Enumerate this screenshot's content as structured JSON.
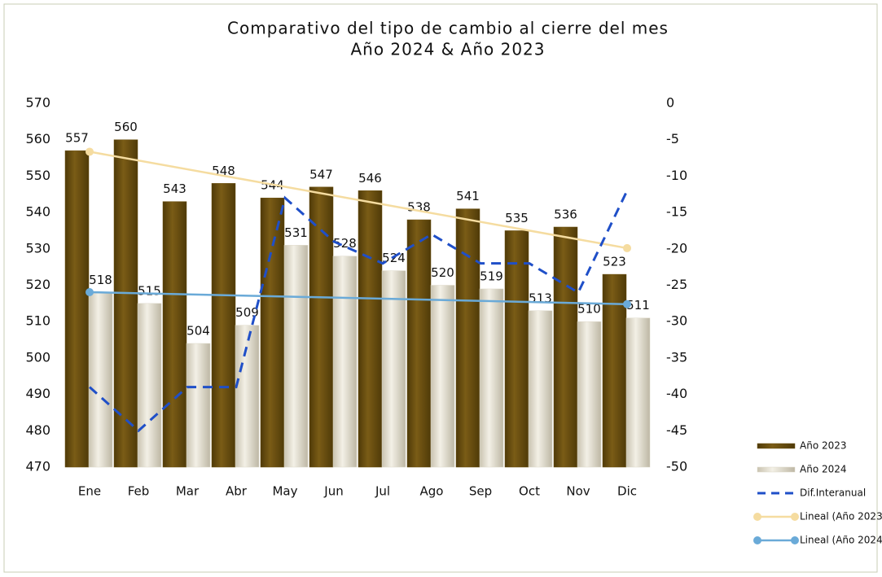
{
  "chart_data": {
    "type": "bar",
    "title": "Comparativo del tipo de cambio al cierre del mes",
    "subtitle": "Año 2024 & Año 2023",
    "categories": [
      "Ene",
      "Feb",
      "Mar",
      "Abr",
      "May",
      "Jun",
      "Jul",
      "Ago",
      "Sep",
      "Oct",
      "Nov",
      "Dic"
    ],
    "series": [
      {
        "name": "Año 2023",
        "color": "#6b5010",
        "values": [
          557,
          560,
          543,
          548,
          544,
          547,
          546,
          538,
          541,
          535,
          536,
          523
        ]
      },
      {
        "name": "Año 2024",
        "color": "#ddd8c8",
        "values": [
          518,
          515,
          504,
          509,
          531,
          528,
          524,
          520,
          519,
          513,
          510,
          511
        ]
      },
      {
        "name": "Dif.Interanual",
        "color": "#1f4fc8",
        "axis": "y2",
        "values": [
          -39,
          -45,
          -39,
          -39,
          -13,
          -19,
          -22,
          -18,
          -22,
          -22,
          -26,
          -12
        ]
      }
    ],
    "trendlines": [
      {
        "name": "Lineal (Año 2023",
        "color": "#f5dca0",
        "values": [
          556.7,
          530.2
        ]
      },
      {
        "name": "Lineal (Año 2024",
        "color": "#6aaad8",
        "values": [
          518.1,
          514.8
        ]
      }
    ],
    "ylim": [
      470,
      570
    ],
    "yticks": [
      470,
      480,
      490,
      500,
      510,
      520,
      530,
      540,
      550,
      560,
      570
    ],
    "y2lim": [
      -50,
      0
    ],
    "y2ticks": [
      -50,
      -45,
      -40,
      -35,
      -30,
      -25,
      -20,
      -15,
      -10,
      -5,
      0
    ],
    "legend": "right"
  }
}
